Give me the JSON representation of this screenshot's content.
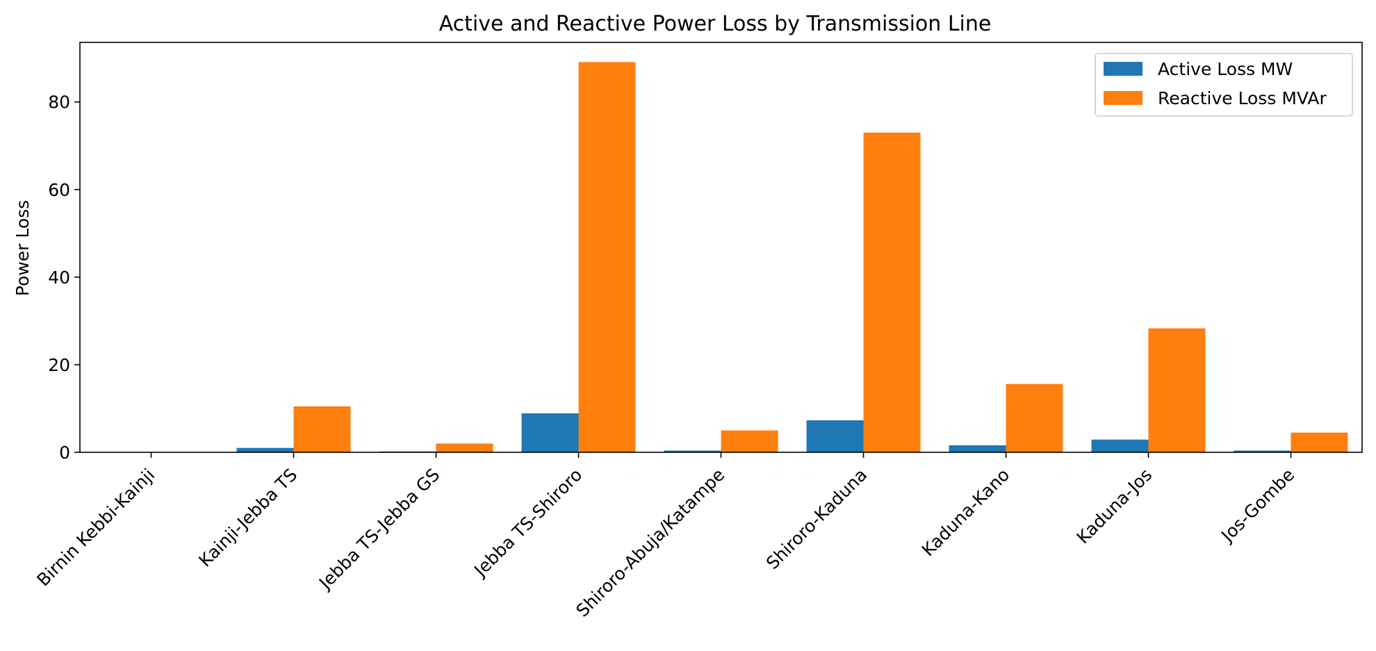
{
  "chart_data": {
    "type": "bar",
    "title": "Active and Reactive Power Loss by Transmission Line",
    "xlabel": "",
    "ylabel": "Power Loss",
    "categories": [
      "Birnin Kebbi-Kainji",
      "Kainji-Jebba TS",
      "Jebba TS-Jebba GS",
      "Jebba TS-Shiroro",
      "Shiroro-Abuja/Katampe",
      "Shiroro-Kaduna",
      "Kaduna-Kano",
      "Kaduna-Jos",
      "Jos-Gombe"
    ],
    "series": [
      {
        "name": "Active Loss MW",
        "color": "#1f77b4",
        "values": [
          0.0,
          1.0,
          0.2,
          8.9,
          0.4,
          7.3,
          1.6,
          2.9,
          0.4
        ]
      },
      {
        "name": "Reactive Loss MVAr",
        "color": "#ff7f0e",
        "values": [
          0.0,
          10.5,
          2.0,
          89.1,
          5.0,
          73.0,
          15.6,
          28.3,
          4.5
        ]
      }
    ],
    "ylim": [
      0,
      93.6
    ],
    "yticks": [
      0,
      20,
      40,
      60,
      80
    ],
    "grid": false,
    "legend_position": "top-right"
  }
}
